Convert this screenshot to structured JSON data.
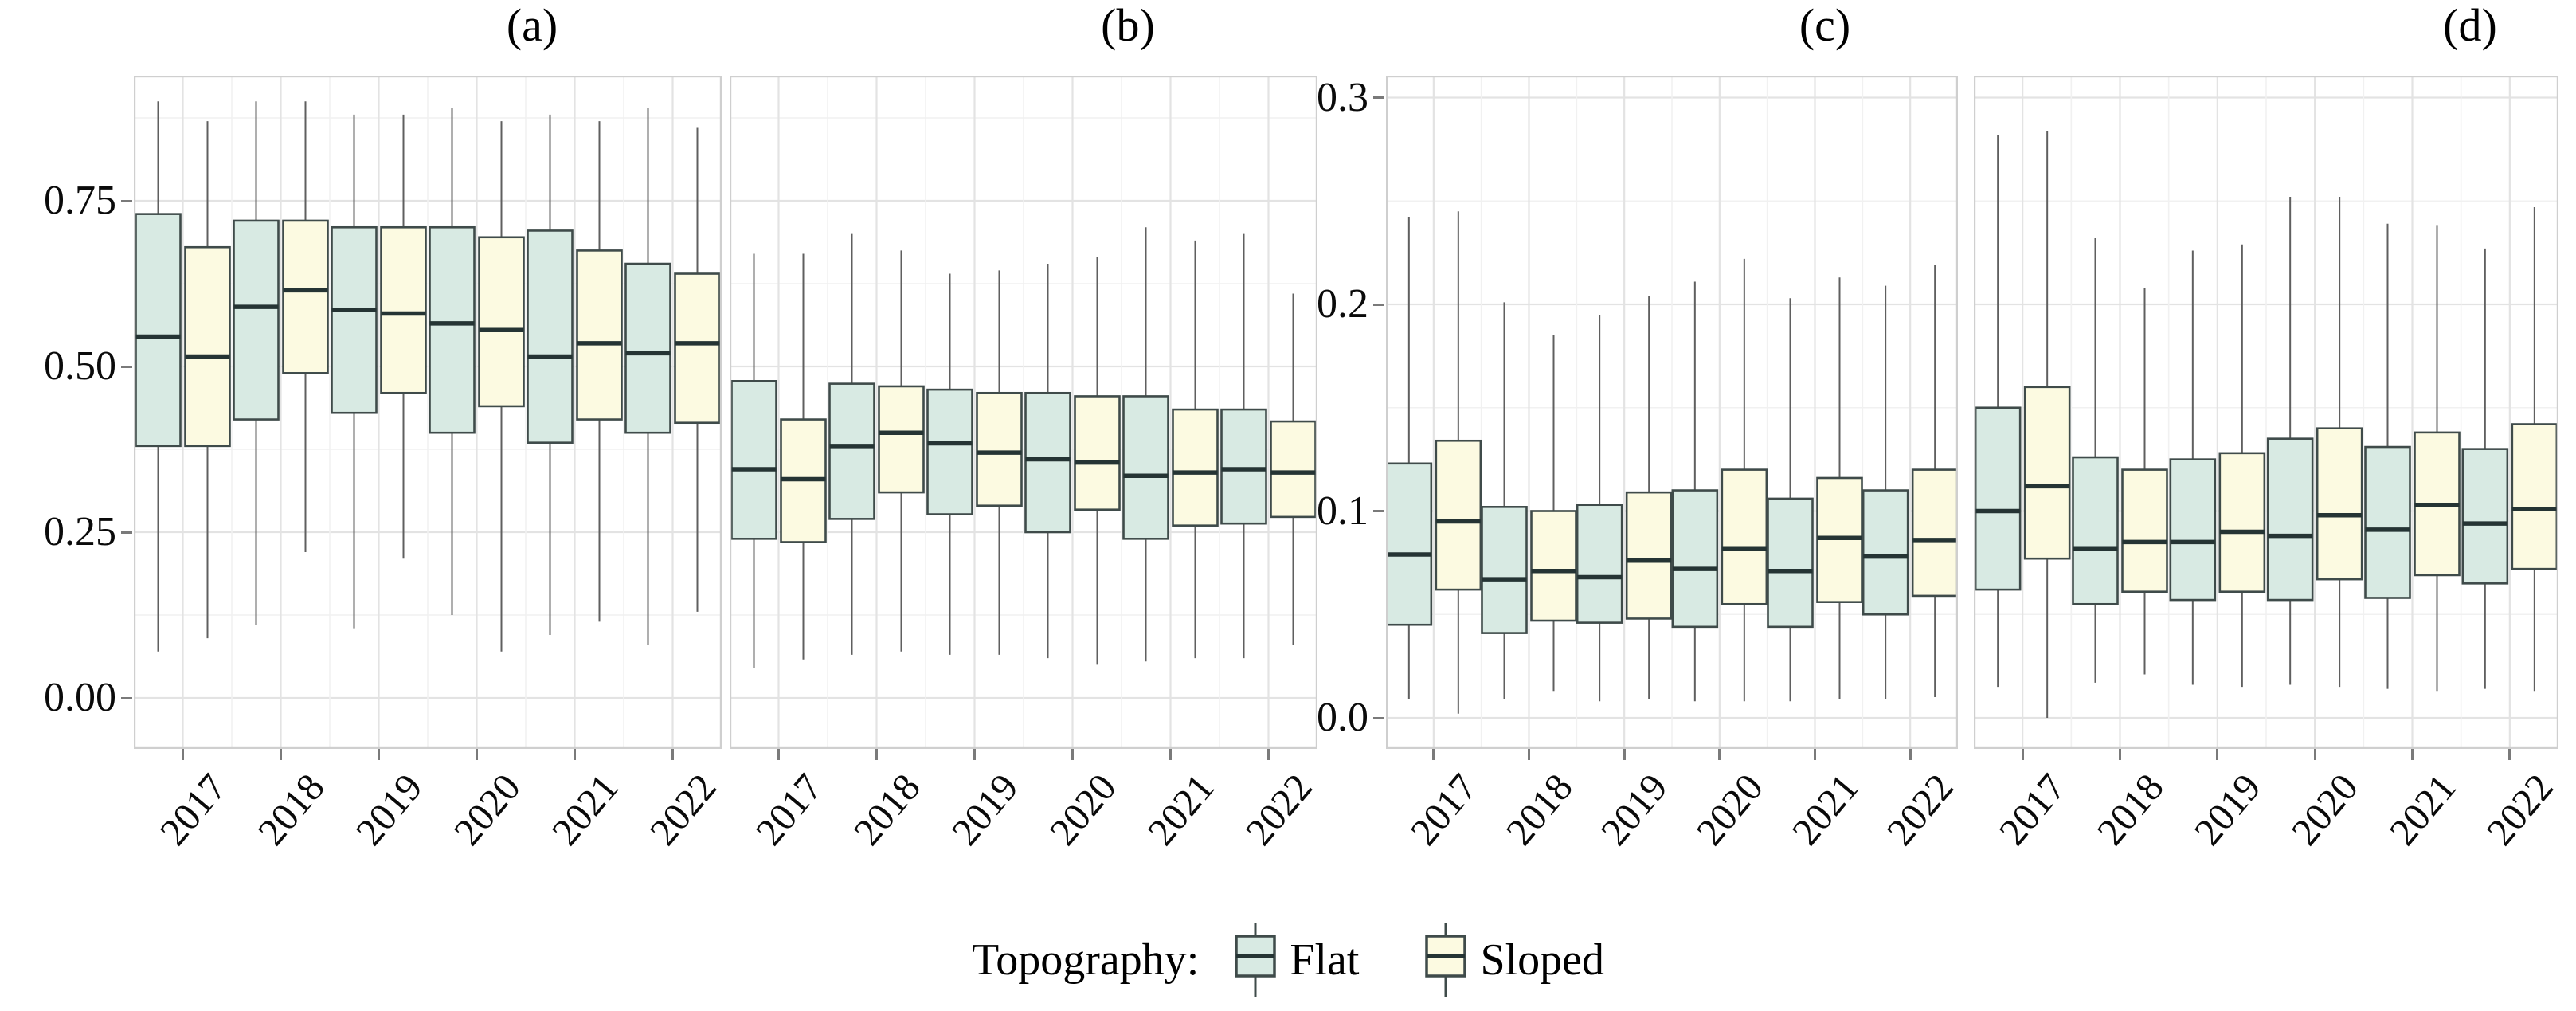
{
  "figure": {
    "legend": {
      "title": "Topography:",
      "items": [
        {
          "label": "Flat",
          "color": "#d8eae3"
        },
        {
          "label": "Sloped",
          "color": "#fcfae1"
        }
      ]
    },
    "colors": {
      "flat_fill": "#d8eae3",
      "sloped_fill": "#fcfae1",
      "box_stroke": "#3f4b4a",
      "median": "#253434",
      "whisker": "#5f5f5f",
      "grid_major": "#e3e3e3",
      "grid_minor": "#f1f1f1",
      "panel_border": "#cfcfcf"
    }
  },
  "chart_data": [
    {
      "type": "boxplot",
      "title": "(a)",
      "categories": [
        "2017",
        "2018",
        "2019",
        "2020",
        "2021",
        "2022"
      ],
      "ylim": [
        -0.07,
        0.94
      ],
      "yticks": {
        "values": [
          0.0,
          0.25,
          0.5,
          0.75
        ],
        "labels": [
          "0.00",
          "0.25",
          "0.50",
          "0.75"
        ]
      },
      "grid": true,
      "legend_position": "bottom",
      "series": [
        {
          "name": "Flat",
          "boxes": [
            {
              "min": 0.07,
              "q1": 0.38,
              "median": 0.545,
              "q3": 0.73,
              "max": 0.9
            },
            {
              "min": 0.11,
              "q1": 0.42,
              "median": 0.59,
              "q3": 0.72,
              "max": 0.9
            },
            {
              "min": 0.105,
              "q1": 0.43,
              "median": 0.585,
              "q3": 0.71,
              "max": 0.88
            },
            {
              "min": 0.125,
              "q1": 0.4,
              "median": 0.565,
              "q3": 0.71,
              "max": 0.89
            },
            {
              "min": 0.095,
              "q1": 0.385,
              "median": 0.515,
              "q3": 0.705,
              "max": 0.88
            },
            {
              "min": 0.08,
              "q1": 0.4,
              "median": 0.52,
              "q3": 0.655,
              "max": 0.89
            }
          ]
        },
        {
          "name": "Sloped",
          "boxes": [
            {
              "min": 0.09,
              "q1": 0.38,
              "median": 0.515,
              "q3": 0.68,
              "max": 0.87
            },
            {
              "min": 0.22,
              "q1": 0.49,
              "median": 0.615,
              "q3": 0.72,
              "max": 0.9
            },
            {
              "min": 0.21,
              "q1": 0.46,
              "median": 0.58,
              "q3": 0.71,
              "max": 0.88
            },
            {
              "min": 0.07,
              "q1": 0.44,
              "median": 0.555,
              "q3": 0.695,
              "max": 0.87
            },
            {
              "min": 0.115,
              "q1": 0.42,
              "median": 0.535,
              "q3": 0.675,
              "max": 0.87
            },
            {
              "min": 0.13,
              "q1": 0.415,
              "median": 0.535,
              "q3": 0.64,
              "max": 0.86
            }
          ]
        }
      ]
    },
    {
      "type": "boxplot",
      "title": "(b)",
      "categories": [
        "2017",
        "2018",
        "2019",
        "2020",
        "2021",
        "2022"
      ],
      "ylim": [
        -0.07,
        0.94
      ],
      "grid": true,
      "series": [
        {
          "name": "Flat",
          "boxes": [
            {
              "min": 0.045,
              "q1": 0.24,
              "median": 0.345,
              "q3": 0.478,
              "max": 0.67
            },
            {
              "min": 0.065,
              "q1": 0.27,
              "median": 0.38,
              "q3": 0.474,
              "max": 0.7
            },
            {
              "min": 0.065,
              "q1": 0.277,
              "median": 0.384,
              "q3": 0.465,
              "max": 0.64
            },
            {
              "min": 0.06,
              "q1": 0.25,
              "median": 0.36,
              "q3": 0.46,
              "max": 0.655
            },
            {
              "min": 0.055,
              "q1": 0.24,
              "median": 0.335,
              "q3": 0.455,
              "max": 0.71
            },
            {
              "min": 0.06,
              "q1": 0.263,
              "median": 0.345,
              "q3": 0.435,
              "max": 0.7
            }
          ]
        },
        {
          "name": "Sloped",
          "boxes": [
            {
              "min": 0.058,
              "q1": 0.235,
              "median": 0.33,
              "q3": 0.42,
              "max": 0.67
            },
            {
              "min": 0.07,
              "q1": 0.31,
              "median": 0.4,
              "q3": 0.47,
              "max": 0.675
            },
            {
              "min": 0.065,
              "q1": 0.29,
              "median": 0.37,
              "q3": 0.46,
              "max": 0.645
            },
            {
              "min": 0.05,
              "q1": 0.284,
              "median": 0.355,
              "q3": 0.455,
              "max": 0.665
            },
            {
              "min": 0.06,
              "q1": 0.26,
              "median": 0.34,
              "q3": 0.435,
              "max": 0.69
            },
            {
              "min": 0.08,
              "q1": 0.273,
              "median": 0.34,
              "q3": 0.417,
              "max": 0.61
            }
          ]
        }
      ]
    },
    {
      "type": "boxplot",
      "title": "(c)",
      "categories": [
        "2017",
        "2018",
        "2019",
        "2020",
        "2021",
        "2022"
      ],
      "ylim": [
        -0.015,
        0.31
      ],
      "yticks": {
        "values": [
          0.0,
          0.1,
          0.2,
          0.3
        ],
        "labels": [
          "0.0",
          "0.1",
          "0.2",
          "0.3"
        ]
      },
      "grid": true,
      "series": [
        {
          "name": "Flat",
          "boxes": [
            {
              "min": 0.009,
              "q1": 0.045,
              "median": 0.079,
              "q3": 0.123,
              "max": 0.242
            },
            {
              "min": 0.009,
              "q1": 0.041,
              "median": 0.067,
              "q3": 0.102,
              "max": 0.201
            },
            {
              "min": 0.008,
              "q1": 0.046,
              "median": 0.068,
              "q3": 0.103,
              "max": 0.195
            },
            {
              "min": 0.008,
              "q1": 0.044,
              "median": 0.072,
              "q3": 0.11,
              "max": 0.211
            },
            {
              "min": 0.008,
              "q1": 0.044,
              "median": 0.071,
              "q3": 0.106,
              "max": 0.203
            },
            {
              "min": 0.009,
              "q1": 0.05,
              "median": 0.078,
              "q3": 0.11,
              "max": 0.209
            }
          ]
        },
        {
          "name": "Sloped",
          "boxes": [
            {
              "min": 0.002,
              "q1": 0.062,
              "median": 0.095,
              "q3": 0.134,
              "max": 0.245
            },
            {
              "min": 0.013,
              "q1": 0.047,
              "median": 0.071,
              "q3": 0.1,
              "max": 0.185
            },
            {
              "min": 0.009,
              "q1": 0.048,
              "median": 0.076,
              "q3": 0.109,
              "max": 0.204
            },
            {
              "min": 0.008,
              "q1": 0.055,
              "median": 0.082,
              "q3": 0.12,
              "max": 0.222
            },
            {
              "min": 0.009,
              "q1": 0.056,
              "median": 0.087,
              "q3": 0.116,
              "max": 0.213
            },
            {
              "min": 0.01,
              "q1": 0.059,
              "median": 0.086,
              "q3": 0.12,
              "max": 0.219
            }
          ]
        }
      ]
    },
    {
      "type": "boxplot",
      "title": "(d)",
      "categories": [
        "2017",
        "2018",
        "2019",
        "2020",
        "2021",
        "2022"
      ],
      "ylim": [
        -0.015,
        0.31
      ],
      "grid": true,
      "series": [
        {
          "name": "Flat",
          "boxes": [
            {
              "min": 0.015,
              "q1": 0.062,
              "median": 0.1,
              "q3": 0.15,
              "max": 0.282
            },
            {
              "min": 0.017,
              "q1": 0.055,
              "median": 0.082,
              "q3": 0.126,
              "max": 0.232
            },
            {
              "min": 0.016,
              "q1": 0.057,
              "median": 0.085,
              "q3": 0.125,
              "max": 0.226
            },
            {
              "min": 0.016,
              "q1": 0.057,
              "median": 0.088,
              "q3": 0.135,
              "max": 0.252
            },
            {
              "min": 0.014,
              "q1": 0.058,
              "median": 0.091,
              "q3": 0.131,
              "max": 0.239
            },
            {
              "min": 0.014,
              "q1": 0.065,
              "median": 0.094,
              "q3": 0.13,
              "max": 0.227
            }
          ]
        },
        {
          "name": "Sloped",
          "boxes": [
            {
              "min": 0.0,
              "q1": 0.077,
              "median": 0.112,
              "q3": 0.16,
              "max": 0.284
            },
            {
              "min": 0.021,
              "q1": 0.061,
              "median": 0.085,
              "q3": 0.12,
              "max": 0.208
            },
            {
              "min": 0.015,
              "q1": 0.061,
              "median": 0.09,
              "q3": 0.128,
              "max": 0.229
            },
            {
              "min": 0.015,
              "q1": 0.067,
              "median": 0.098,
              "q3": 0.14,
              "max": 0.252
            },
            {
              "min": 0.013,
              "q1": 0.069,
              "median": 0.103,
              "q3": 0.138,
              "max": 0.238
            },
            {
              "min": 0.013,
              "q1": 0.072,
              "median": 0.101,
              "q3": 0.142,
              "max": 0.247
            }
          ]
        }
      ]
    }
  ]
}
